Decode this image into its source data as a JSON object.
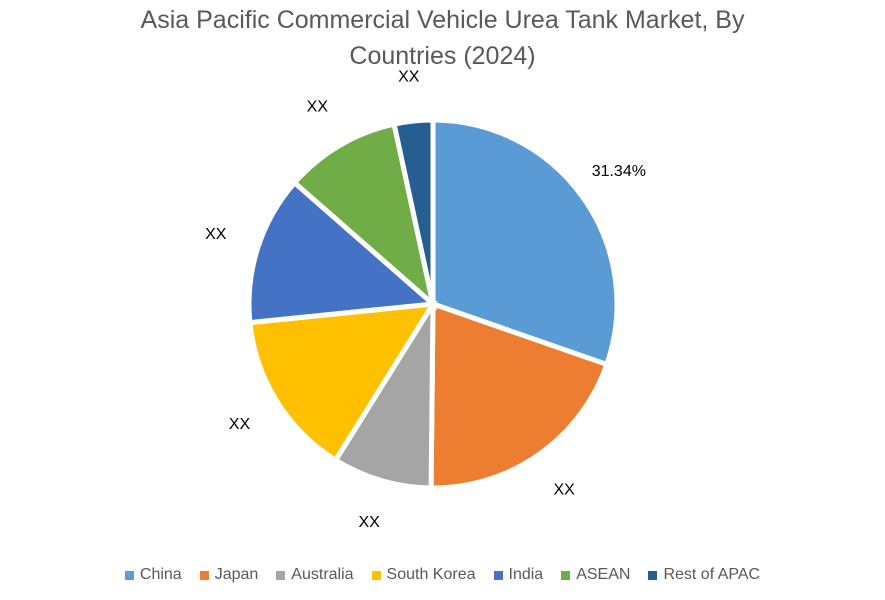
{
  "chart_data": {
    "type": "pie",
    "title": "Asia Pacific Commercial Vehicle Urea Tank Market, By\nCountries (2024)",
    "legend_position": "bottom",
    "slices": [
      {
        "label": "China",
        "value": 31.34,
        "data_label": "31.34%",
        "color": "#5B9BD5"
      },
      {
        "label": "Japan",
        "value": 20.5,
        "data_label": "XX",
        "color": "#ED7D31"
      },
      {
        "label": "Australia",
        "value": 9.0,
        "data_label": "XX",
        "color": "#A5A5A5"
      },
      {
        "label": "South Korea",
        "value": 15.0,
        "data_label": "XX",
        "color": "#FFC000"
      },
      {
        "label": "India",
        "value": 13.5,
        "data_label": "XX",
        "color": "#4472C4"
      },
      {
        "label": "ASEAN",
        "value": 10.5,
        "data_label": "XX",
        "color": "#70AD47"
      },
      {
        "label": "Rest of APAC",
        "value": 3.5,
        "data_label": "XX",
        "color": "#255E91"
      }
    ]
  }
}
